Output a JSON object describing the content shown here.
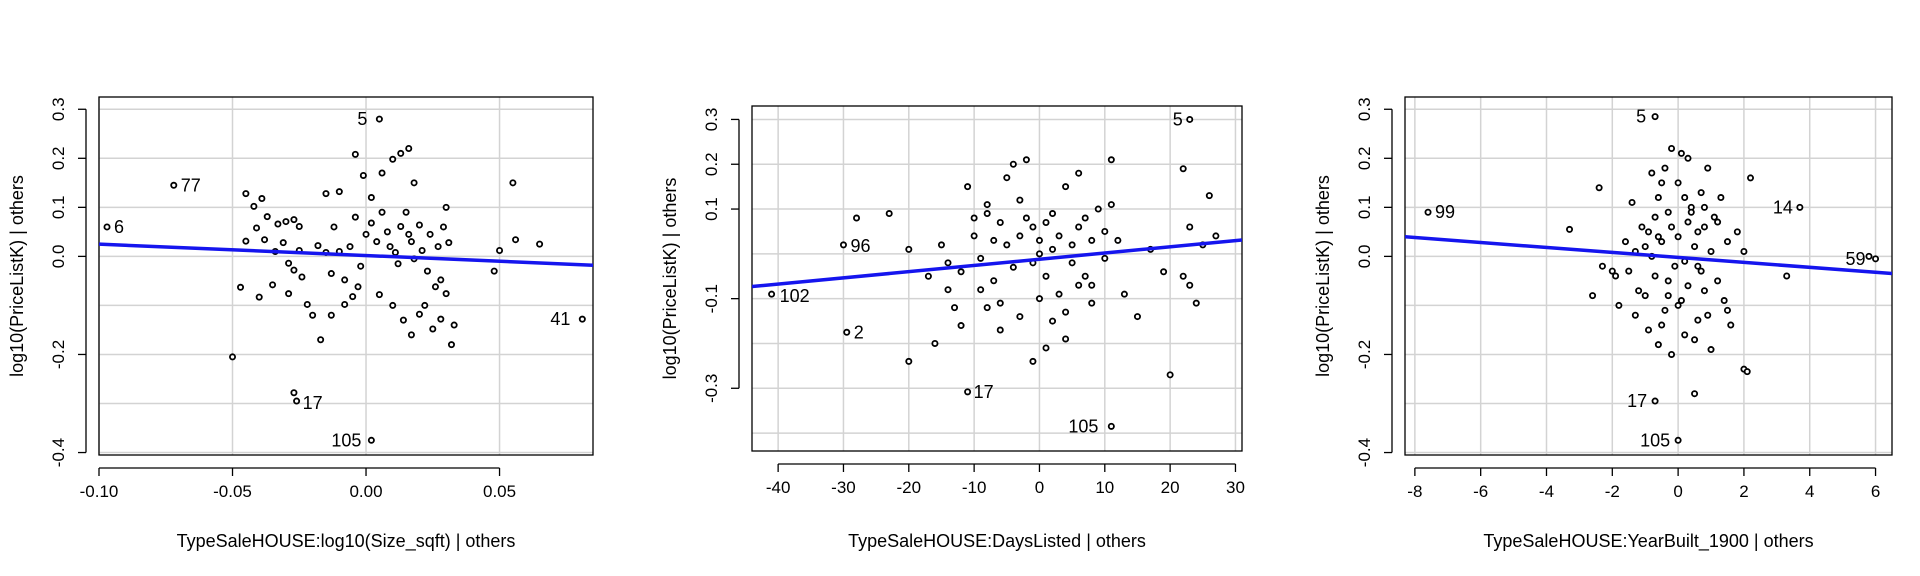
{
  "colors": {
    "fit_line": "#1515ee",
    "grid": "#d3d3d3",
    "points": "#000000"
  },
  "chart_data": [
    {
      "type": "scatter",
      "xlabel": "TypeSaleHOUSE:log10(Size_sqft) | others",
      "ylabel": "log10(PriceListK) | others",
      "xlim": [
        -0.1,
        0.085
      ],
      "ylim": [
        -0.405,
        0.325
      ],
      "xticks": [
        -0.1,
        -0.05,
        0.0,
        0.05
      ],
      "xtick_labels": [
        "-0.10",
        "-0.05",
        "0.00",
        "0.05"
      ],
      "yticks": [
        -0.4,
        -0.2,
        0.0,
        0.1,
        0.2,
        0.3
      ],
      "ytick_labels": [
        "-0.4",
        "-0.2",
        "0.0",
        "0.1",
        "0.2",
        "0.3"
      ],
      "xgrid": [
        -0.1,
        -0.05,
        0.0,
        0.05
      ],
      "ygrid": [
        -0.4,
        -0.3,
        -0.2,
        -0.1,
        0.0,
        0.1,
        0.2,
        0.3
      ],
      "grid": true,
      "fit_line": {
        "x": [
          -0.1,
          0.085
        ],
        "y": [
          0.025,
          -0.018
        ]
      },
      "labeled_points": [
        {
          "label": "5",
          "x": 0.005,
          "y": 0.28
        },
        {
          "label": "77",
          "x": -0.072,
          "y": 0.145
        },
        {
          "label": "6",
          "x": -0.097,
          "y": 0.06
        },
        {
          "label": "41",
          "x": 0.081,
          "y": -0.128
        },
        {
          "label": "17",
          "x": -0.026,
          "y": -0.295
        },
        {
          "label": "105",
          "x": 0.002,
          "y": -0.375
        }
      ],
      "points": [
        [
          -0.045,
          0.128
        ],
        [
          -0.042,
          0.102
        ],
        [
          -0.039,
          0.118
        ],
        [
          -0.037,
          0.081
        ],
        [
          -0.033,
          0.066
        ],
        [
          -0.03,
          0.071
        ],
        [
          -0.027,
          0.075
        ],
        [
          -0.025,
          0.061
        ],
        [
          -0.045,
          0.031
        ],
        [
          -0.041,
          0.058
        ],
        [
          -0.038,
          0.034
        ],
        [
          -0.034,
          0.01
        ],
        [
          -0.031,
          0.028
        ],
        [
          -0.029,
          -0.014
        ],
        [
          -0.027,
          -0.028
        ],
        [
          -0.025,
          0.012
        ],
        [
          -0.047,
          -0.063
        ],
        [
          -0.04,
          -0.083
        ],
        [
          -0.035,
          -0.058
        ],
        [
          -0.029,
          -0.076
        ],
        [
          -0.024,
          -0.042
        ],
        [
          -0.022,
          -0.098
        ],
        [
          -0.02,
          -0.12
        ],
        [
          -0.018,
          0.022
        ],
        [
          -0.015,
          0.008
        ],
        [
          -0.013,
          -0.035
        ],
        [
          -0.012,
          0.06
        ],
        [
          -0.01,
          0.01
        ],
        [
          -0.008,
          -0.048
        ],
        [
          -0.006,
          0.02
        ],
        [
          -0.004,
          0.08
        ],
        [
          -0.002,
          -0.02
        ],
        [
          0.0,
          0.045
        ],
        [
          0.002,
          0.068
        ],
        [
          0.004,
          0.03
        ],
        [
          0.006,
          0.09
        ],
        [
          0.008,
          0.05
        ],
        [
          0.009,
          0.02
        ],
        [
          0.011,
          0.008
        ],
        [
          0.012,
          -0.015
        ],
        [
          0.013,
          0.061
        ],
        [
          0.015,
          0.09
        ],
        [
          0.016,
          0.045
        ],
        [
          0.017,
          0.03
        ],
        [
          0.018,
          -0.005
        ],
        [
          0.02,
          0.064
        ],
        [
          0.021,
          0.012
        ],
        [
          0.023,
          -0.03
        ],
        [
          0.024,
          0.045
        ],
        [
          0.026,
          -0.062
        ],
        [
          0.027,
          0.02
        ],
        [
          0.028,
          -0.048
        ],
        [
          0.029,
          0.06
        ],
        [
          0.03,
          -0.076
        ],
        [
          0.031,
          0.028
        ],
        [
          0.033,
          -0.14
        ],
        [
          -0.008,
          -0.098
        ],
        [
          -0.005,
          -0.082
        ],
        [
          -0.003,
          -0.062
        ],
        [
          0.005,
          -0.078
        ],
        [
          0.01,
          -0.1
        ],
        [
          0.014,
          -0.13
        ],
        [
          0.017,
          -0.16
        ],
        [
          0.02,
          -0.118
        ],
        [
          0.022,
          -0.1
        ],
        [
          0.025,
          -0.148
        ],
        [
          0.028,
          -0.128
        ],
        [
          0.032,
          -0.18
        ],
        [
          -0.017,
          -0.17
        ],
        [
          -0.013,
          -0.12
        ],
        [
          -0.05,
          -0.205
        ],
        [
          -0.027,
          -0.278
        ],
        [
          -0.004,
          0.208
        ],
        [
          -0.001,
          0.165
        ],
        [
          0.002,
          0.12
        ],
        [
          0.006,
          0.17
        ],
        [
          0.01,
          0.198
        ],
        [
          0.013,
          0.21
        ],
        [
          0.016,
          0.22
        ],
        [
          -0.01,
          0.132
        ],
        [
          -0.015,
          0.128
        ],
        [
          0.018,
          0.15
        ],
        [
          0.03,
          0.1
        ],
        [
          0.05,
          0.012
        ],
        [
          0.055,
          0.15
        ],
        [
          0.048,
          -0.03
        ],
        [
          0.056,
          0.034
        ],
        [
          0.065,
          0.025
        ]
      ]
    },
    {
      "type": "scatter",
      "xlabel": "TypeSaleHOUSE:DaysListed | others",
      "ylabel": "log10(PriceListK) | others",
      "xlim": [
        -44,
        31
      ],
      "ylim": [
        -0.44,
        0.33
      ],
      "xticks": [
        -40,
        -30,
        -20,
        -10,
        0,
        10,
        20,
        30
      ],
      "xtick_labels": [
        "-40",
        "-30",
        "-20",
        "-10",
        "0",
        "10",
        "20",
        "30"
      ],
      "yticks": [
        -0.3,
        -0.1,
        0.1,
        0.2,
        0.3
      ],
      "ytick_labels": [
        "-0.3",
        "-0.1",
        "0.1",
        "0.2",
        "0.3"
      ],
      "xgrid": [
        -40,
        -30,
        -20,
        -10,
        0,
        10,
        20,
        30
      ],
      "ygrid": [
        -0.4,
        -0.3,
        -0.2,
        -0.1,
        0.0,
        0.1,
        0.2,
        0.3
      ],
      "grid": true,
      "fit_line": {
        "x": [
          -44,
          31
        ],
        "y": [
          -0.073,
          0.031
        ]
      },
      "labeled_points": [
        {
          "label": "5",
          "x": 23,
          "y": 0.3
        },
        {
          "label": "96",
          "x": -30,
          "y": 0.02
        },
        {
          "label": "102",
          "x": -41,
          "y": -0.09
        },
        {
          "label": "2",
          "x": -29.5,
          "y": -0.175
        },
        {
          "label": "17",
          "x": -11,
          "y": -0.308
        },
        {
          "label": "105",
          "x": 11,
          "y": -0.385
        }
      ],
      "points": [
        [
          -28,
          0.08
        ],
        [
          -23,
          0.09
        ],
        [
          -20,
          0.01
        ],
        [
          -17,
          -0.05
        ],
        [
          -15,
          0.02
        ],
        [
          -14,
          -0.08
        ],
        [
          -13,
          -0.12
        ],
        [
          -12,
          -0.04
        ],
        [
          -11,
          0.15
        ],
        [
          -10,
          0.08
        ],
        [
          -10,
          0.04
        ],
        [
          -9,
          -0.01
        ],
        [
          -8,
          0.11
        ],
        [
          -8,
          0.09
        ],
        [
          -7,
          0.03
        ],
        [
          -7,
          -0.06
        ],
        [
          -6,
          -0.11
        ],
        [
          -6,
          0.07
        ],
        [
          -5,
          0.02
        ],
        [
          -4,
          -0.03
        ],
        [
          -4,
          0.2
        ],
        [
          -3,
          0.12
        ],
        [
          -3,
          0.04
        ],
        [
          -2,
          0.21
        ],
        [
          -2,
          0.08
        ],
        [
          -1,
          -0.02
        ],
        [
          -1,
          0.06
        ],
        [
          0,
          0.03
        ],
        [
          0,
          0.0
        ],
        [
          1,
          0.07
        ],
        [
          1,
          -0.05
        ],
        [
          2,
          0.09
        ],
        [
          2,
          0.01
        ],
        [
          3,
          -0.09
        ],
        [
          3,
          0.04
        ],
        [
          4,
          -0.13
        ],
        [
          4,
          0.15
        ],
        [
          5,
          0.02
        ],
        [
          5,
          -0.02
        ],
        [
          6,
          0.06
        ],
        [
          6,
          0.18
        ],
        [
          7,
          -0.05
        ],
        [
          7,
          0.08
        ],
        [
          8,
          -0.07
        ],
        [
          8,
          0.03
        ],
        [
          9,
          0.1
        ],
        [
          10,
          -0.01
        ],
        [
          10,
          0.05
        ],
        [
          11,
          0.11
        ],
        [
          12,
          0.03
        ],
        [
          -16,
          -0.2
        ],
        [
          -12,
          -0.16
        ],
        [
          -8,
          -0.12
        ],
        [
          -6,
          -0.17
        ],
        [
          -3,
          -0.14
        ],
        [
          0,
          -0.1
        ],
        [
          2,
          -0.15
        ],
        [
          4,
          -0.19
        ],
        [
          6,
          -0.07
        ],
        [
          8,
          -0.11
        ],
        [
          13,
          -0.09
        ],
        [
          15,
          -0.14
        ],
        [
          -20,
          -0.24
        ],
        [
          -1,
          -0.24
        ],
        [
          20,
          -0.27
        ],
        [
          22,
          -0.05
        ],
        [
          23,
          -0.07
        ],
        [
          23,
          0.06
        ],
        [
          24,
          -0.11
        ],
        [
          25,
          0.02
        ],
        [
          26,
          0.13
        ],
        [
          27,
          0.04
        ],
        [
          22,
          0.19
        ],
        [
          19,
          -0.04
        ],
        [
          17,
          0.01
        ],
        [
          11,
          0.21
        ],
        [
          -5,
          0.17
        ],
        [
          1,
          -0.21
        ],
        [
          -9,
          -0.08
        ],
        [
          -14,
          -0.02
        ]
      ]
    },
    {
      "type": "scatter",
      "xlabel": "TypeSaleHOUSE:YearBuilt_1900 | others",
      "ylabel": "log10(PriceListK) | others",
      "xlim": [
        -8.3,
        6.5
      ],
      "ylim": [
        -0.405,
        0.325
      ],
      "xticks": [
        -8,
        -6,
        -4,
        -2,
        0,
        2,
        4,
        6
      ],
      "xtick_labels": [
        "-8",
        "-6",
        "-4",
        "-2",
        "0",
        "2",
        "4",
        "6"
      ],
      "yticks": [
        -0.4,
        -0.2,
        0.0,
        0.1,
        0.2,
        0.3
      ],
      "ytick_labels": [
        "-0.4",
        "-0.2",
        "0.0",
        "0.1",
        "0.2",
        "0.3"
      ],
      "xgrid": [
        -8,
        -6,
        -4,
        -2,
        0,
        2,
        4,
        6
      ],
      "ygrid": [
        -0.4,
        -0.3,
        -0.2,
        -0.1,
        0.0,
        0.1,
        0.2,
        0.3
      ],
      "grid": true,
      "fit_line": {
        "x": [
          -8.3,
          6.5
        ],
        "y": [
          0.04,
          -0.035
        ]
      },
      "labeled_points": [
        {
          "label": "5",
          "x": -0.7,
          "y": 0.285
        },
        {
          "label": "99",
          "x": -7.6,
          "y": 0.09
        },
        {
          "label": "14",
          "x": 3.7,
          "y": 0.1
        },
        {
          "label": "59",
          "x": 6.0,
          "y": -0.005
        },
        {
          "label": "17",
          "x": -0.7,
          "y": -0.295
        },
        {
          "label": "105",
          "x": 0.0,
          "y": -0.375
        }
      ],
      "points": [
        [
          -3.3,
          0.055
        ],
        [
          -2.4,
          0.14
        ],
        [
          -2.0,
          -0.03
        ],
        [
          -2.3,
          -0.02
        ],
        [
          -1.8,
          -0.1
        ],
        [
          -1.5,
          -0.03
        ],
        [
          -1.3,
          0.01
        ],
        [
          -1.2,
          -0.07
        ],
        [
          -1.0,
          -0.08
        ],
        [
          -0.9,
          0.05
        ],
        [
          -0.8,
          0.17
        ],
        [
          -0.7,
          0.08
        ],
        [
          -0.7,
          -0.04
        ],
        [
          -0.6,
          0.12
        ],
        [
          -0.5,
          -0.14
        ],
        [
          -0.5,
          0.03
        ],
        [
          -0.4,
          -0.11
        ],
        [
          -0.3,
          0.09
        ],
        [
          -0.3,
          -0.05
        ],
        [
          -0.2,
          0.06
        ],
        [
          -0.1,
          -0.02
        ],
        [
          0.0,
          0.15
        ],
        [
          0.0,
          0.04
        ],
        [
          0.1,
          -0.09
        ],
        [
          0.1,
          0.21
        ],
        [
          0.2,
          -0.01
        ],
        [
          0.3,
          0.07
        ],
        [
          0.3,
          -0.06
        ],
        [
          0.4,
          0.1
        ],
        [
          0.5,
          0.02
        ],
        [
          0.5,
          -0.17
        ],
        [
          0.6,
          0.05
        ],
        [
          0.7,
          0.13
        ],
        [
          0.7,
          -0.03
        ],
        [
          0.8,
          0.06
        ],
        [
          0.9,
          -0.12
        ],
        [
          1.0,
          0.01
        ],
        [
          1.1,
          0.08
        ],
        [
          1.2,
          -0.05
        ],
        [
          1.3,
          0.12
        ],
        [
          1.4,
          -0.09
        ],
        [
          1.5,
          0.03
        ],
        [
          -1.1,
          0.06
        ],
        [
          -0.9,
          -0.15
        ],
        [
          -0.6,
          -0.18
        ],
        [
          -0.2,
          -0.2
        ],
        [
          0.2,
          -0.16
        ],
        [
          0.6,
          -0.13
        ],
        [
          1.0,
          -0.19
        ],
        [
          1.6,
          -0.14
        ],
        [
          1.8,
          0.05
        ],
        [
          2.0,
          0.01
        ],
        [
          2.2,
          0.16
        ],
        [
          2.0,
          -0.23
        ],
        [
          2.1,
          -0.235
        ],
        [
          3.3,
          -0.04
        ],
        [
          5.8,
          0.0
        ],
        [
          -0.2,
          0.22
        ],
        [
          0.3,
          0.2
        ],
        [
          -0.5,
          0.15
        ],
        [
          0.9,
          0.18
        ],
        [
          -1.4,
          0.11
        ],
        [
          -0.8,
          0.0
        ],
        [
          0.4,
          0.09
        ],
        [
          -0.3,
          -0.08
        ],
        [
          0.6,
          -0.02
        ],
        [
          -0.6,
          0.04
        ],
        [
          1.2,
          0.07
        ],
        [
          -2.6,
          -0.08
        ],
        [
          -1.9,
          -0.04
        ],
        [
          0.5,
          -0.28
        ],
        [
          -1.0,
          0.02
        ],
        [
          0.0,
          -0.1
        ],
        [
          0.8,
          -0.07
        ],
        [
          -1.3,
          -0.12
        ],
        [
          1.5,
          -0.11
        ],
        [
          -0.4,
          0.18
        ],
        [
          0.2,
          0.12
        ],
        [
          0.8,
          0.1
        ],
        [
          -1.6,
          0.03
        ]
      ]
    }
  ]
}
